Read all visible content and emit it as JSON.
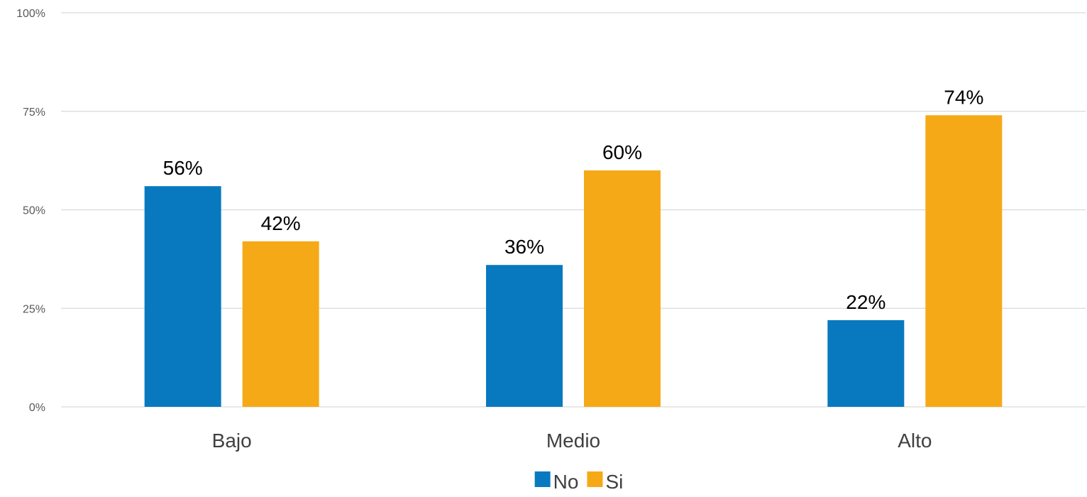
{
  "chart_data": {
    "type": "bar",
    "title": "",
    "xlabel": "",
    "ylabel": "",
    "categories": [
      "Bajo",
      "Medio",
      "Alto"
    ],
    "series": [
      {
        "name": "No",
        "color": "#0879BF",
        "values": [
          56,
          36,
          22
        ],
        "labels": [
          "56%",
          "36%",
          "22%"
        ]
      },
      {
        "name": "Si",
        "color": "#F6A917",
        "values": [
          42,
          60,
          74
        ],
        "labels": [
          "42%",
          "60%",
          "74%"
        ]
      }
    ],
    "ylim": [
      0,
      100
    ],
    "yticks": [
      0,
      25,
      50,
      75,
      100
    ],
    "ytick_labels": [
      "0%",
      "25%",
      "50%",
      "75%",
      "100%"
    ],
    "grid": true,
    "legend_position": "bottom-center"
  }
}
